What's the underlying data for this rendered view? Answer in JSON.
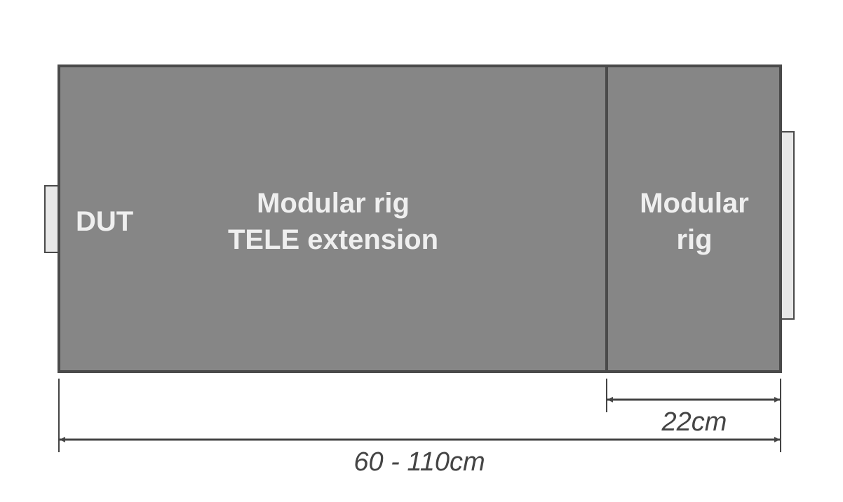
{
  "diagram": {
    "dut_label": "DUT",
    "extension_label_line1": "Modular rig",
    "extension_label_line2": "TELE extension",
    "rig_label_line1": "Modular",
    "rig_label_line2": "rig",
    "rig_width_label": "22cm",
    "total_length_label": "60 - 110cm"
  },
  "colors": {
    "box_fill": "#868686",
    "box_stroke": "#4a4a4a",
    "tab_fill": "#e8e8e8",
    "label_text": "#efefef",
    "dimension": "#444444"
  }
}
